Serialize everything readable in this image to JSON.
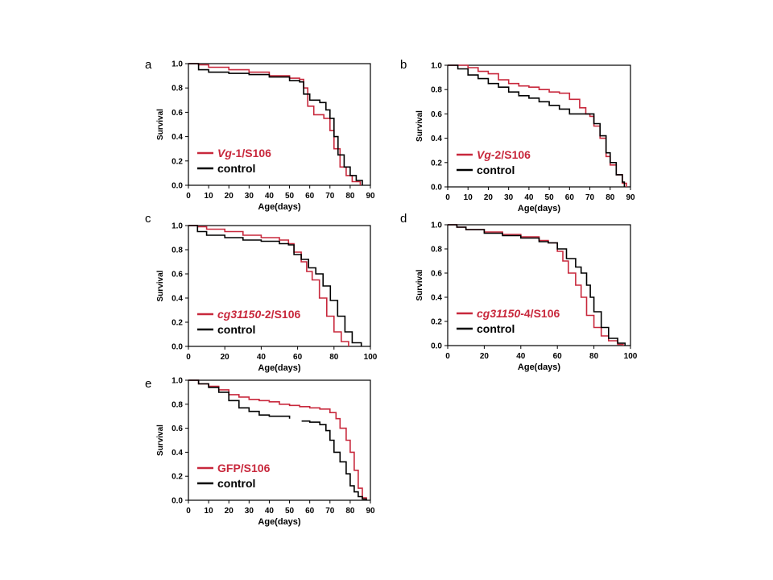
{
  "colors": {
    "treatment": "#c8283c",
    "control": "#000000",
    "frame": "#000000"
  },
  "chart_data": [
    {
      "panel": "a",
      "type": "line",
      "xlabel": "Age(days)",
      "ylabel": "Survival",
      "xlim": [
        0,
        90
      ],
      "ylim": [
        0,
        1.0
      ],
      "xticks": [
        0,
        10,
        20,
        30,
        40,
        50,
        60,
        70,
        80,
        90
      ],
      "yticks": [
        0.0,
        0.2,
        0.4,
        0.6,
        0.8,
        1.0
      ],
      "series": [
        {
          "name": "Vg-1/S106",
          "italic": "Vg",
          "rest": "-1/S106",
          "role": "treatment",
          "x": [
            0,
            5,
            10,
            20,
            30,
            40,
            50,
            55,
            57,
            59,
            62,
            67,
            70,
            72,
            75,
            78,
            81,
            85
          ],
          "y": [
            1.0,
            0.99,
            0.97,
            0.95,
            0.93,
            0.9,
            0.88,
            0.87,
            0.8,
            0.65,
            0.58,
            0.55,
            0.45,
            0.3,
            0.15,
            0.08,
            0.03,
            0.0
          ]
        },
        {
          "name": "control",
          "italic": "",
          "rest": "control",
          "role": "control",
          "x": [
            0,
            5,
            10,
            20,
            30,
            40,
            50,
            55,
            57,
            60,
            65,
            68,
            70,
            72,
            74,
            77,
            80,
            83,
            86
          ],
          "y": [
            1.0,
            0.95,
            0.93,
            0.92,
            0.91,
            0.89,
            0.86,
            0.85,
            0.75,
            0.7,
            0.68,
            0.62,
            0.55,
            0.4,
            0.25,
            0.15,
            0.08,
            0.04,
            0.0
          ]
        }
      ]
    },
    {
      "panel": "b",
      "type": "line",
      "xlabel": "Age(days)",
      "ylabel": "Survival",
      "xlim": [
        0,
        90
      ],
      "ylim": [
        0,
        1.0
      ],
      "xticks": [
        0,
        10,
        20,
        30,
        40,
        50,
        60,
        70,
        80,
        90
      ],
      "yticks": [
        0.0,
        0.2,
        0.4,
        0.6,
        0.8,
        1.0
      ],
      "series": [
        {
          "name": "Vg-2/S106",
          "italic": "Vg",
          "rest": "-2/S106",
          "role": "treatment",
          "x": [
            0,
            5,
            10,
            15,
            20,
            25,
            30,
            35,
            40,
            45,
            50,
            55,
            60,
            65,
            68,
            70,
            72,
            75,
            78,
            80,
            83,
            86,
            88
          ],
          "y": [
            1.0,
            1.0,
            0.98,
            0.95,
            0.93,
            0.88,
            0.85,
            0.83,
            0.82,
            0.8,
            0.78,
            0.77,
            0.72,
            0.65,
            0.6,
            0.58,
            0.5,
            0.4,
            0.25,
            0.18,
            0.1,
            0.03,
            0.0
          ]
        },
        {
          "name": "control",
          "italic": "",
          "rest": "control",
          "role": "control",
          "x": [
            0,
            5,
            10,
            15,
            20,
            25,
            30,
            35,
            40,
            45,
            50,
            55,
            60,
            65,
            70,
            72,
            75,
            78,
            80,
            83,
            86,
            87
          ],
          "y": [
            1.0,
            0.97,
            0.92,
            0.89,
            0.85,
            0.82,
            0.78,
            0.75,
            0.73,
            0.7,
            0.67,
            0.64,
            0.6,
            0.6,
            0.6,
            0.52,
            0.42,
            0.28,
            0.2,
            0.1,
            0.04,
            0.0
          ]
        }
      ]
    },
    {
      "panel": "c",
      "type": "line",
      "xlabel": "Age(days)",
      "ylabel": "Survival",
      "xlim": [
        0,
        100
      ],
      "ylim": [
        0,
        1.0
      ],
      "xticks": [
        0,
        20,
        40,
        60,
        80,
        100
      ],
      "yticks": [
        0.0,
        0.2,
        0.4,
        0.6,
        0.8,
        1.0
      ],
      "series": [
        {
          "name": "cg31150-2/S106",
          "italic": "cg31150",
          "rest": "-2/S106",
          "role": "treatment",
          "x": [
            0,
            5,
            10,
            20,
            30,
            40,
            50,
            55,
            58,
            62,
            65,
            68,
            72,
            76,
            80,
            84,
            88
          ],
          "y": [
            1.0,
            0.99,
            0.97,
            0.95,
            0.92,
            0.9,
            0.88,
            0.85,
            0.78,
            0.7,
            0.62,
            0.55,
            0.4,
            0.25,
            0.12,
            0.04,
            0.0
          ]
        },
        {
          "name": "control",
          "italic": "",
          "rest": "control",
          "role": "control",
          "x": [
            0,
            5,
            10,
            20,
            30,
            40,
            50,
            55,
            58,
            62,
            66,
            70,
            74,
            78,
            82,
            86,
            90,
            95
          ],
          "y": [
            1.0,
            0.95,
            0.92,
            0.9,
            0.88,
            0.87,
            0.85,
            0.84,
            0.76,
            0.72,
            0.65,
            0.6,
            0.5,
            0.38,
            0.25,
            0.12,
            0.03,
            0.0
          ]
        }
      ]
    },
    {
      "panel": "d",
      "type": "line",
      "xlabel": "Age(days)",
      "ylabel": "Survival",
      "xlim": [
        0,
        100
      ],
      "ylim": [
        0,
        1.0
      ],
      "xticks": [
        0,
        20,
        40,
        60,
        80,
        100
      ],
      "yticks": [
        0.0,
        0.2,
        0.4,
        0.6,
        0.8,
        1.0
      ],
      "series": [
        {
          "name": "cg31150-4/S106",
          "italic": "cg31150",
          "rest": "-4/S106",
          "role": "treatment",
          "x": [
            0,
            5,
            10,
            20,
            30,
            40,
            50,
            55,
            60,
            63,
            66,
            70,
            73,
            76,
            80,
            84,
            88,
            93,
            96
          ],
          "y": [
            1.0,
            0.98,
            0.96,
            0.94,
            0.92,
            0.9,
            0.87,
            0.85,
            0.78,
            0.7,
            0.6,
            0.5,
            0.4,
            0.25,
            0.15,
            0.08,
            0.04,
            0.01,
            0.0
          ]
        },
        {
          "name": "control",
          "italic": "",
          "rest": "control",
          "role": "control",
          "x": [
            0,
            5,
            10,
            20,
            30,
            40,
            50,
            55,
            60,
            65,
            70,
            73,
            76,
            78,
            80,
            84,
            88,
            93,
            97
          ],
          "y": [
            1.0,
            0.98,
            0.96,
            0.93,
            0.91,
            0.89,
            0.86,
            0.85,
            0.8,
            0.72,
            0.65,
            0.6,
            0.5,
            0.4,
            0.28,
            0.15,
            0.06,
            0.02,
            0.0
          ]
        }
      ]
    },
    {
      "panel": "e",
      "type": "line",
      "xlabel": "Age(days)",
      "ylabel": "Survival",
      "xlim": [
        0,
        90
      ],
      "ylim": [
        0,
        1.0
      ],
      "xticks": [
        0,
        10,
        20,
        30,
        40,
        50,
        60,
        70,
        80,
        90
      ],
      "yticks": [
        0.0,
        0.2,
        0.4,
        0.6,
        0.8,
        1.0
      ],
      "series": [
        {
          "name": "GFP/S106",
          "italic": "",
          "rest": "GFP/S106",
          "role": "treatment",
          "x": [
            0,
            5,
            10,
            15,
            20,
            25,
            30,
            35,
            40,
            45,
            50,
            55,
            60,
            65,
            70,
            73,
            75,
            78,
            80,
            82,
            84,
            86,
            88
          ],
          "y": [
            1.0,
            0.97,
            0.95,
            0.92,
            0.88,
            0.86,
            0.84,
            0.83,
            0.82,
            0.8,
            0.79,
            0.78,
            0.77,
            0.76,
            0.73,
            0.68,
            0.6,
            0.5,
            0.4,
            0.25,
            0.1,
            0.02,
            0.0
          ]
        },
        {
          "name": "control",
          "italic": "",
          "rest": "control",
          "role": "control",
          "x": [
            0,
            5,
            10,
            15,
            20,
            25,
            30,
            35,
            40,
            45,
            50
          ],
          "y": [
            1.0,
            0.97,
            0.94,
            0.9,
            0.83,
            0.77,
            0.74,
            0.71,
            0.7,
            0.7,
            0.68
          ],
          "x2": [
            56,
            60,
            65,
            68,
            70,
            72,
            75,
            78,
            80,
            82,
            84,
            86,
            88
          ],
          "y2": [
            0.66,
            0.65,
            0.63,
            0.58,
            0.5,
            0.4,
            0.32,
            0.22,
            0.12,
            0.07,
            0.03,
            0.01,
            0.0
          ]
        }
      ]
    }
  ]
}
